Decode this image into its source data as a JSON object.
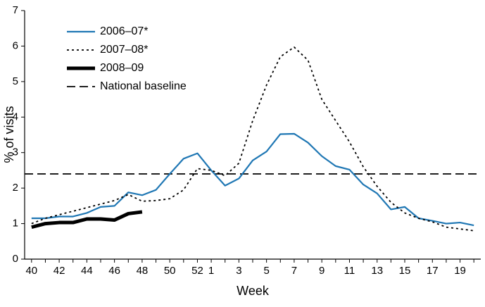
{
  "chart_data": {
    "type": "line",
    "y_label": "% of visits",
    "x_label": "Week",
    "categories": [
      40,
      null,
      42,
      null,
      44,
      null,
      46,
      null,
      48,
      null,
      50,
      null,
      52,
      1,
      null,
      3,
      null,
      5,
      null,
      7,
      null,
      9,
      null,
      11,
      null,
      13,
      null,
      15,
      null,
      17,
      null,
      19,
      null
    ],
    "ylim": [
      0,
      7
    ],
    "yticks": [
      0,
      1,
      2,
      3,
      4,
      5,
      6,
      7
    ],
    "grid": false,
    "legend": "top-left",
    "series": [
      {
        "name": "2006–07*",
        "color": "#1f77b4",
        "style": "solid",
        "width": 2.2,
        "values": [
          1.15,
          1.15,
          1.2,
          1.2,
          1.3,
          1.47,
          1.5,
          1.88,
          1.8,
          1.95,
          2.4,
          2.83,
          2.98,
          2.5,
          2.07,
          2.27,
          2.78,
          3.03,
          3.52,
          3.53,
          3.28,
          2.9,
          2.62,
          2.52,
          2.1,
          1.85,
          1.4,
          1.47,
          1.15,
          1.08,
          1.0,
          1.03,
          0.95
        ]
      },
      {
        "name": "2007–08*",
        "color": "#000000",
        "style": "dotted",
        "width": 1.8,
        "values": [
          1.0,
          1.15,
          1.25,
          1.35,
          1.45,
          1.55,
          1.65,
          1.82,
          1.63,
          1.65,
          1.7,
          1.95,
          2.55,
          2.5,
          2.35,
          2.7,
          3.9,
          4.9,
          5.7,
          5.97,
          5.6,
          4.5,
          3.9,
          3.3,
          2.6,
          2.05,
          1.6,
          1.3,
          1.15,
          1.05,
          0.9,
          0.85,
          0.8
        ]
      },
      {
        "name": "2008–09",
        "color": "#000000",
        "style": "solid",
        "width": 5,
        "values": [
          0.9,
          1.0,
          1.03,
          1.03,
          1.13,
          1.13,
          1.1,
          1.28,
          1.33,
          null,
          null,
          null,
          null,
          null,
          null,
          null,
          null,
          null,
          null,
          null,
          null,
          null,
          null,
          null,
          null,
          null,
          null,
          null,
          null,
          null,
          null,
          null,
          null
        ]
      }
    ],
    "baseline": {
      "name": "National baseline",
      "value": 2.4,
      "color": "#000000",
      "style": "dashed"
    }
  }
}
